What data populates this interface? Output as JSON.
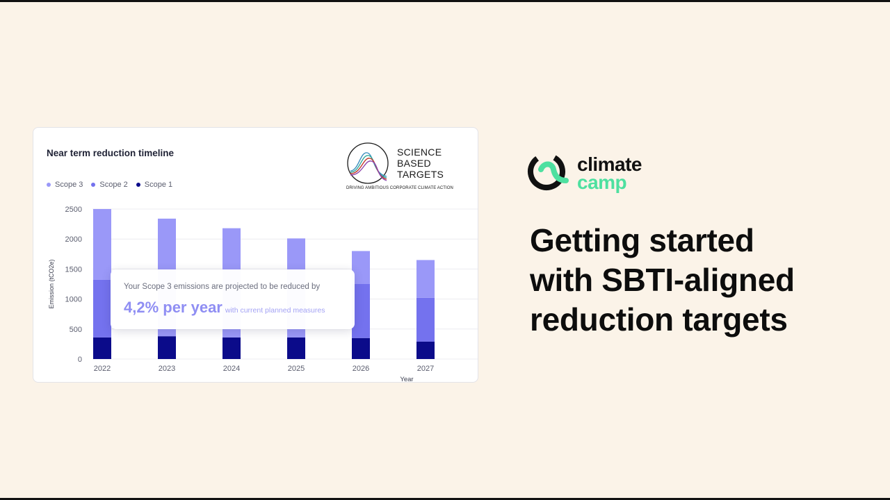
{
  "card": {
    "title": "Near term reduction timeline"
  },
  "logo": {
    "line1": "SCIENCE",
    "line2": "BASED",
    "line3": "TARGETS",
    "tagline": "DRIVING AMBITIOUS CORPORATE CLIMATE ACTION"
  },
  "tooltip": {
    "line1": "Your Scope 3 emissions are projected to be reduced by",
    "value": "4,2% per year",
    "suffix": "with current planned measures"
  },
  "brand": {
    "word1": "climate",
    "word2": "camp",
    "accent_color": "#4ee0a0"
  },
  "headline": {
    "line1": "Getting started",
    "line2": "with SBTI-aligned",
    "line3": "reduction targets"
  },
  "chart_data": {
    "type": "bar",
    "stacked": true,
    "categories": [
      "2022",
      "2023",
      "2024",
      "2025",
      "2026",
      "2027"
    ],
    "series": [
      {
        "name": "Scope 1",
        "color": "#0b0b8a",
        "values": [
          360,
          380,
          360,
          360,
          350,
          290
        ]
      },
      {
        "name": "Scope 2",
        "color": "#7472ee",
        "values": [
          960,
          0,
          0,
          0,
          900,
          730
        ]
      },
      {
        "name": "Scope 3",
        "color": "#9a98f8",
        "values": [
          1180,
          1960,
          1820,
          1650,
          550,
          630
        ]
      }
    ],
    "legend_order": [
      "Scope 3",
      "Scope 2",
      "Scope 1"
    ],
    "xlabel": "Year",
    "ylabel": "Emission (tCO2e)",
    "ylim": [
      0,
      2500
    ],
    "yticks": [
      0,
      500,
      1000,
      1500,
      2000,
      2500
    ],
    "grid": true,
    "legend_position": "top-left"
  }
}
